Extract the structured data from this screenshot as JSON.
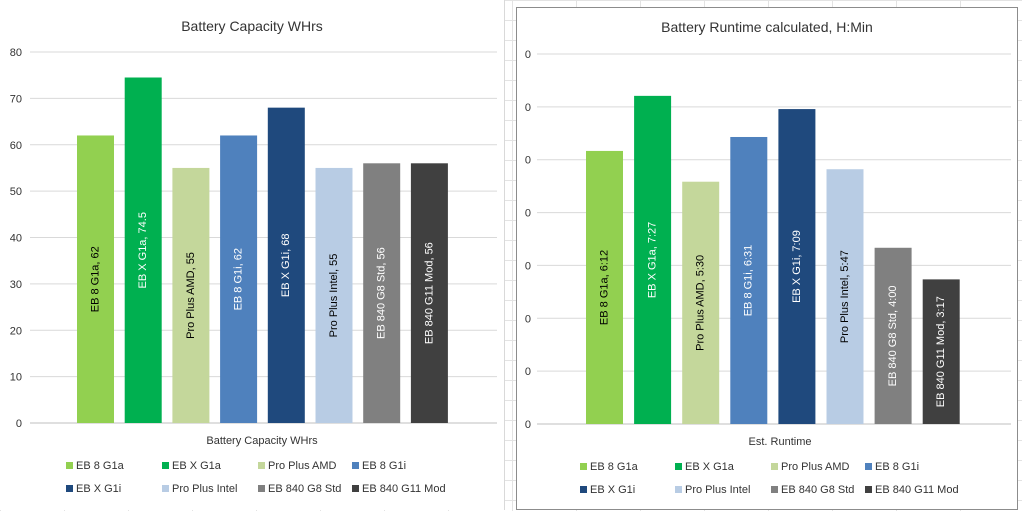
{
  "chart_data": [
    {
      "type": "bar",
      "title": "Battery Capacity WHrs",
      "xlabel": "Battery Capacity WHrs",
      "ylabel": "",
      "ylim": [
        0,
        80
      ],
      "yticks": [
        "0",
        "10",
        "20",
        "30",
        "40",
        "50",
        "60",
        "70",
        "80"
      ],
      "categories": [
        "EB 8 G1a",
        "EB X G1a",
        "Pro Plus AMD",
        "EB 8 G1i",
        "EB X G1i",
        "Pro Plus Intel",
        "EB 840 G8 Std",
        "EB 840 G11 Mod"
      ],
      "values": [
        62,
        74.5,
        55,
        62,
        68,
        55,
        56,
        56
      ],
      "data_labels": [
        "EB 8 G1a, 62",
        "EB X G1a, 74.5",
        "Pro Plus AMD, 55",
        "EB 8 G1i, 62",
        "EB X G1i, 68",
        "Pro Plus Intel, 55",
        "EB 840 G8 Std, 56",
        "EB 840 G11 Mod, 56"
      ],
      "legend": [
        "EB 8 G1a",
        "EB X G1a",
        "Pro Plus AMD",
        "EB 8 G1i",
        "EB X G1i",
        "Pro Plus Intel",
        "EB 840 G8 Std",
        "EB 840 G11 Mod"
      ],
      "legend_position": "bottom",
      "grid": true
    },
    {
      "type": "bar",
      "title": "Battery Runtime calculated, H:Min",
      "xlabel": "Est. Runtime",
      "ylabel": "",
      "ylim": [
        0,
        0.35
      ],
      "yticks": [
        "0",
        "0",
        "0",
        "0",
        "0",
        "0",
        "0",
        "0"
      ],
      "categories": [
        "EB 8 G1a",
        "EB X G1a",
        "Pro Plus AMD",
        "EB 8 G1i",
        "EB X G1i",
        "Pro Plus Intel",
        "EB 840 G8 Std",
        "EB 840 G11 Mod"
      ],
      "values": [
        0.2583,
        0.3104,
        0.2292,
        0.2715,
        0.2979,
        0.241,
        0.1667,
        0.1368
      ],
      "data_labels": [
        "EB 8 G1a, 6:12",
        "EB X G1a, 7:27",
        "Pro Plus AMD, 5:30",
        "EB 8 G1i, 6:31",
        "EB X G1i, 7:09",
        "Pro Plus Intel, 5:47",
        "EB 840 G8 Std, 4:00",
        "EB 840 G11 Mod, 3:17"
      ],
      "legend": [
        "EB 8 G1a",
        "EB X G1a",
        "Pro Plus AMD",
        "EB 8 G1i",
        "EB X G1i",
        "Pro Plus Intel",
        "EB 840 G8 Std",
        "EB 840 G11 Mod"
      ],
      "legend_position": "bottom",
      "grid": true
    }
  ],
  "colors": [
    "#92d050",
    "#00b050",
    "#c4d79b",
    "#4f81bd",
    "#1f497d",
    "#b8cce4",
    "#808080",
    "#404040"
  ],
  "label_colors": [
    "#000000",
    "#ffffff",
    "#000000",
    "#ffffff",
    "#ffffff",
    "#000000",
    "#ffffff",
    "#ffffff"
  ]
}
